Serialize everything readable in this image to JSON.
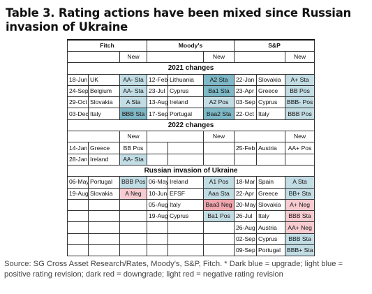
{
  "title": "Table 3. Rating actions have been mixed since Russian invasion of Ukraine",
  "agencies": [
    "Fitch",
    "Moody's",
    "S&P"
  ],
  "new_label": "New",
  "sections": {
    "s2021": "2021 changes",
    "s2022": "2022 changes",
    "sinv": "Russian invasion of Ukraine"
  },
  "rows_2021": [
    [
      {
        "d": "18-Jun",
        "c": "UK",
        "r": "AA- Sta",
        "t": "lb"
      },
      {
        "d": "12-Feb",
        "c": "Lithuania",
        "r": "A2 Sta",
        "t": "db"
      },
      {
        "d": "22-Jan",
        "c": "Slovakia",
        "r": "A+ Sta",
        "t": "lb"
      }
    ],
    [
      {
        "d": "24-Sep",
        "c": "Belgium",
        "r": "AA- Sta",
        "t": "lb"
      },
      {
        "d": "23-Jul",
        "c": "Cyprus",
        "r": "Ba1 Sta",
        "t": "db"
      },
      {
        "d": "23-Apr",
        "c": "Greece",
        "r": "BB Pos",
        "t": "lb"
      }
    ],
    [
      {
        "d": "29-Oct",
        "c": "Slovakia",
        "r": "A Sta",
        "t": "lb"
      },
      {
        "d": "13-Aug",
        "c": "Ireland",
        "r": "A2 Pos",
        "t": "lb"
      },
      {
        "d": "03-Sep",
        "c": "Cyprus",
        "r": "BBB- Pos",
        "t": "lb"
      }
    ],
    [
      {
        "d": "03-Dec",
        "c": "Italy",
        "r": "BBB Sta",
        "t": "db"
      },
      {
        "d": "17-Sep",
        "c": "Portugal",
        "r": "Baa2 Sta",
        "t": "db"
      },
      {
        "d": "22-Oct",
        "c": "Italy",
        "r": "BBB Pos",
        "t": "lb"
      }
    ]
  ],
  "rows_2022": [
    [
      {
        "d": "14-Jan",
        "c": "Greece",
        "r": "BB Pos",
        "t": ""
      },
      {
        "d": "",
        "c": "",
        "r": "",
        "t": ""
      },
      {
        "d": "25-Feb",
        "c": "Austria",
        "r": "AA+ Pos",
        "t": ""
      }
    ],
    [
      {
        "d": "28-Jan",
        "c": "Ireland",
        "r": "AA- Sta",
        "t": "lb"
      },
      {
        "d": "",
        "c": "",
        "r": "",
        "t": ""
      },
      {
        "d": "",
        "c": "",
        "r": "",
        "t": ""
      }
    ]
  ],
  "rows_inv": [
    [
      {
        "d": "06-May",
        "c": "Portugal",
        "r": "BBB Pos",
        "t": "lb"
      },
      {
        "d": "06-May",
        "c": "Ireland",
        "r": "A1 Pos",
        "t": "lb"
      },
      {
        "d": "18-Mar",
        "c": "Spain",
        "r": "A Sta",
        "t": "lb"
      }
    ],
    [
      {
        "d": "19-Aug",
        "c": "Slovakia",
        "r": "A Neg",
        "t": "lr"
      },
      {
        "d": "10-Jun",
        "c": "EFSF",
        "r": "Aaa Sta",
        "t": "lb"
      },
      {
        "d": "22-Apr",
        "c": "Greece",
        "r": "BB+ Sta",
        "t": "lb"
      }
    ],
    [
      {
        "d": "",
        "c": "",
        "r": "",
        "t": ""
      },
      {
        "d": "05-Aug",
        "c": "Italy",
        "r": "Baa3 Neg",
        "t": "dr"
      },
      {
        "d": "20-May",
        "c": "Slovakia",
        "r": "A+ Neg",
        "t": "lr"
      }
    ],
    [
      {
        "d": "",
        "c": "",
        "r": "",
        "t": ""
      },
      {
        "d": "19-Aug",
        "c": "Cyprus",
        "r": "Ba1 Pos",
        "t": "lb"
      },
      {
        "d": "26-Jul",
        "c": "Italy",
        "r": "BBB Sta",
        "t": "lr"
      }
    ],
    [
      {
        "d": "",
        "c": "",
        "r": "",
        "t": ""
      },
      {
        "d": "",
        "c": "",
        "r": "",
        "t": ""
      },
      {
        "d": "26-Aug",
        "c": "Austria",
        "r": "AA+ Neg",
        "t": "lr"
      }
    ],
    [
      {
        "d": "",
        "c": "",
        "r": "",
        "t": ""
      },
      {
        "d": "",
        "c": "",
        "r": "",
        "t": ""
      },
      {
        "d": "02-Sep",
        "c": "Cyprus",
        "r": "BBB Sta",
        "t": "lb"
      }
    ],
    [
      {
        "d": "",
        "c": "",
        "r": "",
        "t": ""
      },
      {
        "d": "",
        "c": "",
        "r": "",
        "t": ""
      },
      {
        "d": "09-Sep",
        "c": "Portugal",
        "r": "BBB+ Sta",
        "t": "lb"
      }
    ]
  ],
  "source_note": "Source: SG Cross Asset Research/Rates, Moody's, S&P, Fitch. * Dark blue = upgrade; light blue = positive rating revision; dark red = downgrade; light red = negative rating revision"
}
